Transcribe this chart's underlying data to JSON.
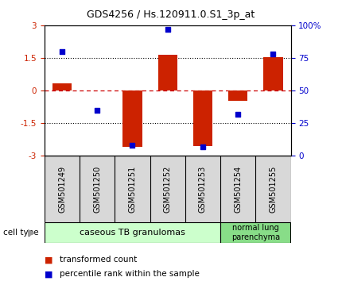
{
  "title": "GDS4256 / Hs.120911.0.S1_3p_at",
  "samples": [
    "GSM501249",
    "GSM501250",
    "GSM501251",
    "GSM501252",
    "GSM501253",
    "GSM501254",
    "GSM501255"
  ],
  "transformed_counts": [
    0.35,
    0.02,
    -2.6,
    1.65,
    -2.55,
    -0.45,
    1.55
  ],
  "percentile_ranks": [
    80,
    35,
    8,
    97,
    7,
    32,
    78
  ],
  "ylim_left": [
    -3,
    3
  ],
  "ylim_right": [
    0,
    100
  ],
  "yticks_left": [
    -3,
    -1.5,
    0,
    1.5,
    3
  ],
  "ytick_labels_left": [
    "-3",
    "-1.5",
    "0",
    "1.5",
    "3"
  ],
  "yticks_right": [
    0,
    25,
    50,
    75,
    100
  ],
  "ytick_labels_right": [
    "0",
    "25",
    "50",
    "75",
    "100%"
  ],
  "bar_color": "#CC2200",
  "scatter_color": "#0000CC",
  "zero_line_color": "#CC0000",
  "dotted_line_color": "#000000",
  "n_group1": 5,
  "n_group2": 2,
  "group1_label": "caseous TB granulomas",
  "group2_label": "normal lung\nparenchyma",
  "group1_color": "#CCFFCC",
  "group2_color": "#88DD88",
  "xlabel_color": "#888888",
  "cell_type_label": "cell type",
  "legend_bar_label": "transformed count",
  "legend_scatter_label": "percentile rank within the sample",
  "bar_width": 0.55,
  "scatter_marker": "s",
  "scatter_size": 25,
  "tick_label_fontsize": 7.5,
  "sample_label_fontsize": 7,
  "title_fontsize": 9
}
